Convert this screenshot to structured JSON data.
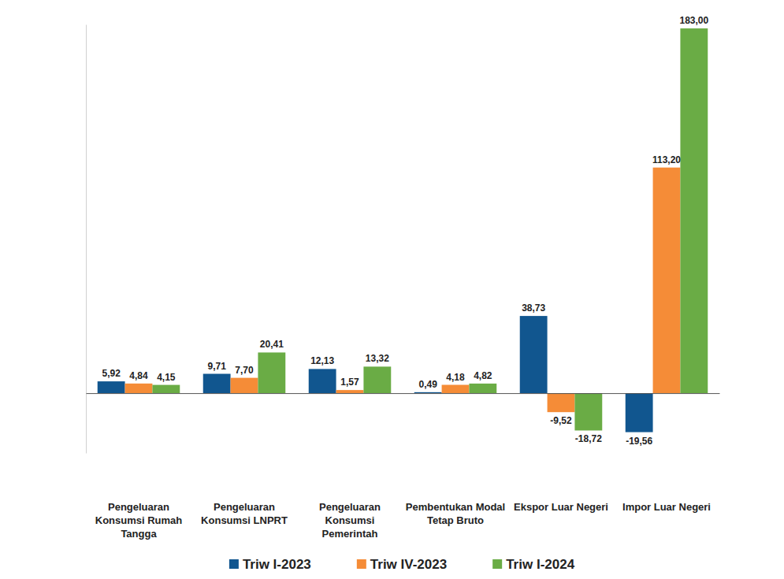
{
  "chart_data": {
    "type": "bar",
    "categories": [
      "Pengeluaran Konsumsi Rumah Tangga",
      "Pengeluaran Konsumsi LNPRT",
      "Pengeluaran Konsumsi Pemerintah",
      "Pembentukan Modal Tetap Bruto",
      "Ekspor Luar Negeri",
      "Impor Luar Negeri"
    ],
    "series": [
      {
        "name": "Triw I-2023",
        "color": "#11568f",
        "values": [
          5.92,
          9.71,
          12.13,
          0.49,
          38.73,
          -19.56
        ],
        "value_labels": [
          "5,92",
          "9,71",
          "12,13",
          "0,49",
          "38,73",
          "-19,56"
        ]
      },
      {
        "name": "Triw IV-2023",
        "color": "#f58c37",
        "values": [
          4.84,
          7.7,
          1.57,
          4.18,
          -9.52,
          113.2
        ],
        "value_labels": [
          "4,84",
          "7,70",
          "1,57",
          "4,18",
          "-9,52",
          "113,20"
        ]
      },
      {
        "name": "Triw I-2024",
        "color": "#6aac45",
        "values": [
          4.15,
          20.41,
          13.32,
          4.82,
          -18.72,
          183.0
        ],
        "value_labels": [
          "4,15",
          "20,41",
          "13,32",
          "4,82",
          "-18,72",
          "183,00"
        ]
      }
    ],
    "ylim": [
      -30,
      185
    ],
    "yticks": [],
    "grid": false,
    "legend": "bottom",
    "data_labels": true,
    "tick_labels": "x"
  }
}
